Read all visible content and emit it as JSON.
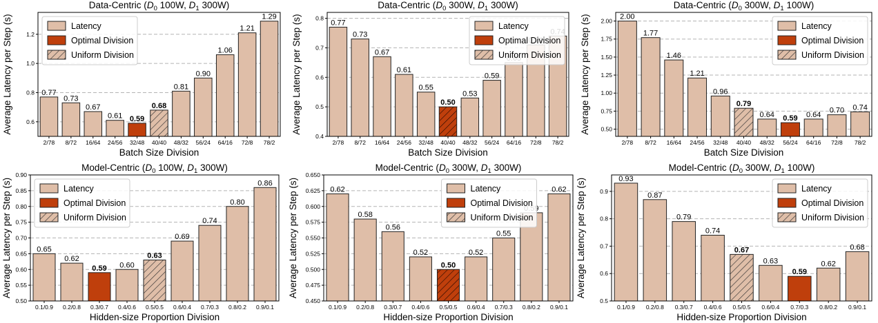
{
  "colors": {
    "latency": "#dfbea8",
    "optimal": "#bf3f0c",
    "uniform": "#dfbea8",
    "grid": "#b3b3b3",
    "edge": "#222222"
  },
  "chart_data": [
    {
      "type": "bar",
      "title_prefix": "Data-Centric (",
      "title_parts": [
        [
          "D",
          "0",
          " 100W, "
        ],
        [
          "D",
          "1",
          " 300W)"
        ]
      ],
      "xlabel": "Batch Size Division",
      "ylabel": "Average Latency per Step (s)",
      "ylim": [
        0.5,
        1.35
      ],
      "yticks": [
        0.6,
        0.8,
        1.0,
        1.2
      ],
      "ytick_labels": [
        "0.6",
        "0.8",
        "1.0",
        "1.2"
      ],
      "categories": [
        "2/78",
        "8/72",
        "16/64",
        "24/56",
        "32/48",
        "40/40",
        "48/32",
        "56/24",
        "64/16",
        "72/8",
        "78/2"
      ],
      "values": [
        0.77,
        0.73,
        0.67,
        0.61,
        0.59,
        0.68,
        0.81,
        0.9,
        1.06,
        1.21,
        1.29
      ],
      "value_labels": [
        "0.77",
        "0.73",
        "0.67",
        "0.61",
        "0.59",
        "0.68",
        "0.81",
        "0.90",
        "1.06",
        "1.21",
        "1.29"
      ],
      "kinds": [
        "latency",
        "latency",
        "latency",
        "latency",
        "optimal",
        "uniform",
        "latency",
        "latency",
        "latency",
        "latency",
        "latency"
      ],
      "legend": [
        "Latency",
        "Optimal Division",
        "Uniform Division"
      ],
      "legend_position": "top-left",
      "grid": true
    },
    {
      "type": "bar",
      "title_prefix": "Data-Centric (",
      "title_parts": [
        [
          "D",
          "0",
          " 300W, "
        ],
        [
          "D",
          "1",
          " 300W)"
        ]
      ],
      "xlabel": "Batch Size Division",
      "ylabel": "Average Latency per Step (s)",
      "ylim": [
        0.4,
        0.82
      ],
      "yticks": [
        0.4,
        0.5,
        0.6,
        0.7,
        0.8
      ],
      "ytick_labels": [
        "0.4",
        "0.5",
        "0.6",
        "0.7",
        "0.8"
      ],
      "categories": [
        "2/78",
        "8/72",
        "16/64",
        "24/56",
        "32/48",
        "40/40",
        "48/32",
        "56/24",
        "64/16",
        "72/8",
        "78/2"
      ],
      "values": [
        0.77,
        0.73,
        0.67,
        0.61,
        0.55,
        0.5,
        0.53,
        0.59,
        0.65,
        0.71,
        0.74
      ],
      "value_labels": [
        "0.77",
        "0.73",
        "0.67",
        "0.61",
        "0.55",
        "0.50",
        "0.53",
        "0.59",
        "0.65",
        "0.71",
        "0.74"
      ],
      "kinds": [
        "latency",
        "latency",
        "latency",
        "latency",
        "latency",
        "both",
        "latency",
        "latency",
        "latency",
        "latency",
        "latency"
      ],
      "legend": [
        "Latency",
        "Optimal Division",
        "Uniform Division"
      ],
      "legend_position": "top-right",
      "grid": true
    },
    {
      "type": "bar",
      "title_prefix": "Data-Centric (",
      "title_parts": [
        [
          "D",
          "0",
          " 300W, "
        ],
        [
          "D",
          "1",
          " 100W)"
        ]
      ],
      "xlabel": "Batch Size Division",
      "ylabel": "Average Latency per Step (s)",
      "ylim": [
        0.4,
        2.12
      ],
      "yticks": [
        0.5,
        0.75,
        1.0,
        1.25,
        1.5,
        1.75,
        2.0
      ],
      "ytick_labels": [
        "0.50",
        "0.75",
        "1.00",
        "1.25",
        "1.50",
        "1.75",
        "2.00"
      ],
      "categories": [
        "2/78",
        "8/72",
        "16/64",
        "24/56",
        "32/48",
        "40/40",
        "48/32",
        "56/24",
        "64/16",
        "72/8",
        "78/2"
      ],
      "values": [
        2.0,
        1.77,
        1.46,
        1.21,
        0.96,
        0.79,
        0.64,
        0.59,
        0.64,
        0.7,
        0.74
      ],
      "value_labels": [
        "2.00",
        "1.77",
        "1.46",
        "1.21",
        "0.96",
        "0.79",
        "0.64",
        "0.59",
        "0.64",
        "0.70",
        "0.74"
      ],
      "kinds": [
        "latency",
        "latency",
        "latency",
        "latency",
        "latency",
        "uniform",
        "latency",
        "optimal",
        "latency",
        "latency",
        "latency"
      ],
      "legend": [
        "Latency",
        "Optimal Division",
        "Uniform Division"
      ],
      "legend_position": "top-right",
      "grid": true
    },
    {
      "type": "bar",
      "title_prefix": "Model-Centric (",
      "title_parts": [
        [
          "D",
          "0",
          " 100W, "
        ],
        [
          "D",
          "1",
          " 300W)"
        ]
      ],
      "xlabel": "Hidden-size Proportion Division",
      "ylabel": "Average Latency per Step (s)",
      "ylim": [
        0.5,
        0.9
      ],
      "yticks": [
        0.5,
        0.55,
        0.6,
        0.65,
        0.7,
        0.75,
        0.8,
        0.85,
        0.9
      ],
      "ytick_labels": [
        "0.50",
        "0.55",
        "0.60",
        "0.65",
        "0.70",
        "0.75",
        "0.80",
        "0.85",
        "0.90"
      ],
      "categories": [
        "0.1/0.9",
        "0.2/0.8",
        "0.3/0.7",
        "0.4/0.6",
        "0.5/0.5",
        "0.6/0.4",
        "0.7/0.3",
        "0.8/0.2",
        "0.9/0.1"
      ],
      "values": [
        0.65,
        0.62,
        0.59,
        0.6,
        0.63,
        0.69,
        0.74,
        0.8,
        0.86
      ],
      "value_labels": [
        "0.65",
        "0.62",
        "0.59",
        "0.60",
        "0.63",
        "0.69",
        "0.74",
        "0.80",
        "0.86"
      ],
      "kinds": [
        "latency",
        "latency",
        "optimal",
        "latency",
        "uniform",
        "latency",
        "latency",
        "latency",
        "latency"
      ],
      "legend": [
        "Latency",
        "Optimal Division",
        "Uniform Division"
      ],
      "legend_position": "top-left",
      "grid": true
    },
    {
      "type": "bar",
      "title_prefix": "Model-Centric (",
      "title_parts": [
        [
          "D",
          "0",
          " 300W, "
        ],
        [
          "D",
          "1",
          " 300W)"
        ]
      ],
      "xlabel": "Hidden-size Proportion Division",
      "ylabel": "Average Latency per Step (s)",
      "ylim": [
        0.45,
        0.65
      ],
      "yticks": [
        0.45,
        0.475,
        0.5,
        0.525,
        0.55,
        0.575,
        0.6,
        0.625,
        0.65
      ],
      "ytick_labels": [
        "0.450",
        "0.475",
        "0.500",
        "0.525",
        "0.550",
        "0.575",
        "0.600",
        "0.625",
        "0.650"
      ],
      "categories": [
        "0.1/0.9",
        "0.2/0.8",
        "0.3/0.7",
        "0.4/0.6",
        "0.5/0.5",
        "0.6/0.4",
        "0.7/0.3",
        "0.8/0.2",
        "0.9/0.1"
      ],
      "values": [
        0.62,
        0.58,
        0.56,
        0.52,
        0.5,
        0.52,
        0.55,
        0.59,
        0.62
      ],
      "value_labels": [
        "0.62",
        "0.58",
        "0.56",
        "0.52",
        "0.50",
        "0.52",
        "0.55",
        "0.59",
        "0.62"
      ],
      "kinds": [
        "latency",
        "latency",
        "latency",
        "latency",
        "both",
        "latency",
        "latency",
        "latency",
        "latency"
      ],
      "legend": [
        "Latency",
        "Optimal Division",
        "Uniform Division"
      ],
      "legend_position": "top-center",
      "grid": true
    },
    {
      "type": "bar",
      "title_prefix": "Model-Centric (",
      "title_parts": [
        [
          "D",
          "0",
          " 300W, "
        ],
        [
          "D",
          "1",
          " 100W)"
        ]
      ],
      "xlabel": "Hidden-size Proportion Division",
      "ylabel": "Average Latency per Step (s)",
      "ylim": [
        0.5,
        0.96
      ],
      "yticks": [
        0.5,
        0.6,
        0.7,
        0.8,
        0.9
      ],
      "ytick_labels": [
        "0.5",
        "0.6",
        "0.7",
        "0.8",
        "0.9"
      ],
      "categories": [
        "0.1/0.9",
        "0.2/0.8",
        "0.3/0.7",
        "0.4/0.6",
        "0.5/0.5",
        "0.6/0.4",
        "0.7/0.3",
        "0.8/0.2",
        "0.9/0.1"
      ],
      "values": [
        0.93,
        0.87,
        0.79,
        0.74,
        0.67,
        0.63,
        0.59,
        0.62,
        0.68
      ],
      "value_labels": [
        "0.93",
        "0.87",
        "0.79",
        "0.74",
        "0.67",
        "0.63",
        "0.59",
        "0.62",
        "0.68"
      ],
      "kinds": [
        "latency",
        "latency",
        "latency",
        "latency",
        "uniform",
        "latency",
        "optimal",
        "latency",
        "latency"
      ],
      "legend": [
        "Latency",
        "Optimal Division",
        "Uniform Division"
      ],
      "legend_position": "top-right",
      "grid": true
    }
  ]
}
